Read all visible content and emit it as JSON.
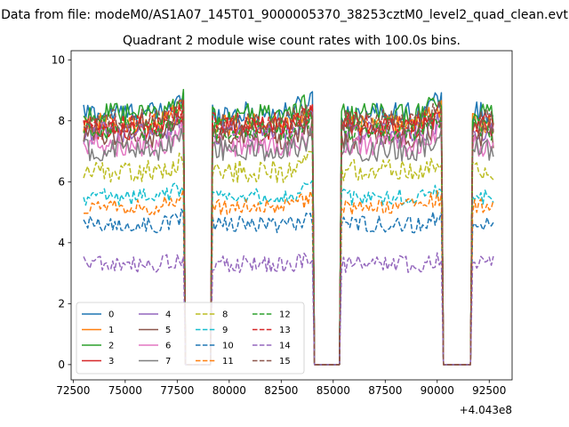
{
  "figure": {
    "suptitle": "Data from file: modeM0/AS1A07_145T01_9000005370_38253cztM0_level2_quad_clean.evt"
  },
  "chart_data": {
    "type": "line",
    "title": "Quadrant 2 module wise count rates with 100.0s bins.",
    "xlabel": "",
    "ylabel": "",
    "x_offset_label": "+4.043e8",
    "x_offset": 404300000,
    "xlim": [
      72400,
      93600
    ],
    "ylim": [
      -0.5,
      10.3
    ],
    "xticks": [
      72500,
      75000,
      77500,
      80000,
      82500,
      85000,
      87500,
      90000,
      92500
    ],
    "xtick_labels": [
      "72500",
      "75000",
      "77500",
      "80000",
      "82500",
      "85000",
      "87500",
      "90000",
      "92500"
    ],
    "yticks": [
      0,
      2,
      4,
      6,
      8,
      10
    ],
    "ytick_labels": [
      "0",
      "2",
      "4",
      "6",
      "8",
      "10"
    ],
    "grid": false,
    "legend": {
      "placement": "lower-left",
      "columns": 4
    },
    "x_range": [
      73000,
      92700
    ],
    "bin_seconds": 100,
    "gaps": [
      [
        77900,
        79100
      ],
      [
        84100,
        85300
      ],
      [
        90300,
        91600
      ]
    ],
    "series": [
      {
        "name": "0",
        "color": "#1f77b4",
        "dash": "solid",
        "level": 8.25
      },
      {
        "name": "1",
        "color": "#ff7f0e",
        "dash": "solid",
        "level": 7.9
      },
      {
        "name": "2",
        "color": "#2ca02c",
        "dash": "solid",
        "level": 8.2
      },
      {
        "name": "3",
        "color": "#d62728",
        "dash": "solid",
        "level": 7.75
      },
      {
        "name": "4",
        "color": "#9467bd",
        "dash": "solid",
        "level": 7.6
      },
      {
        "name": "5",
        "color": "#8c564b",
        "dash": "solid",
        "level": 7.45
      },
      {
        "name": "6",
        "color": "#e377c2",
        "dash": "solid",
        "level": 7.2
      },
      {
        "name": "7",
        "color": "#7f7f7f",
        "dash": "solid",
        "level": 7.05
      },
      {
        "name": "8",
        "color": "#bcbd22",
        "dash": "dashed",
        "level": 6.35
      },
      {
        "name": "9",
        "color": "#17becf",
        "dash": "dashed",
        "level": 5.5
      },
      {
        "name": "10",
        "color": "#1f77b4",
        "dash": "dashed",
        "level": 4.6
      },
      {
        "name": "11",
        "color": "#ff7f0e",
        "dash": "dashed",
        "level": 5.2
      },
      {
        "name": "12",
        "color": "#2ca02c",
        "dash": "dashed",
        "level": 7.7
      },
      {
        "name": "13",
        "color": "#d62728",
        "dash": "dashed",
        "level": 7.9
      },
      {
        "name": "14",
        "color": "#9467bd",
        "dash": "dashed",
        "level": 3.3
      },
      {
        "name": "15",
        "color": "#8c564b",
        "dash": "dashed",
        "level": 8.0
      }
    ]
  }
}
